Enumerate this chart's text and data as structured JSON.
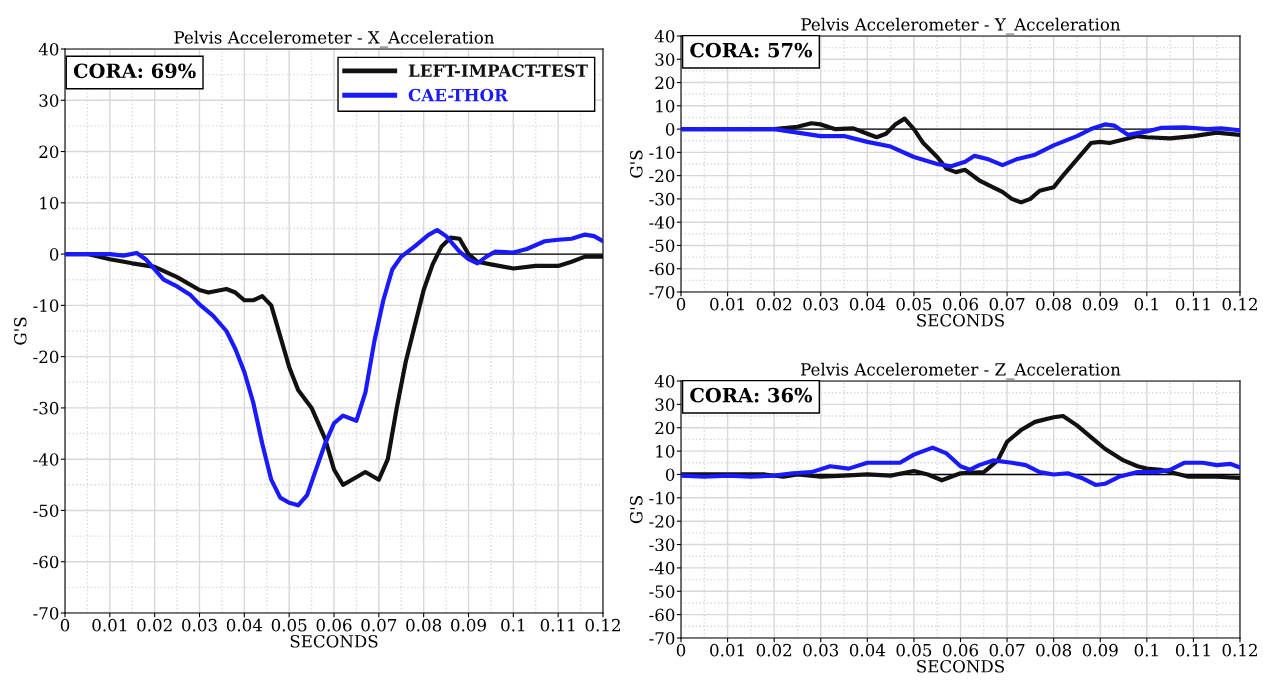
{
  "chart_data": [
    {
      "type": "line",
      "title": "Pelvis Accelerometer - X_Acceleration",
      "xlabel": "SECONDS",
      "ylabel": "G'S",
      "annotations": [
        "CORA: 69%"
      ],
      "xlim": [
        0,
        0.12
      ],
      "ylim": [
        -70,
        40
      ],
      "xticks": [
        0,
        0.01,
        0.02,
        0.03,
        0.04,
        0.05,
        0.06,
        0.07,
        0.08,
        0.09,
        0.1,
        0.11,
        0.12
      ],
      "yticks": [
        -70,
        -60,
        -50,
        -40,
        -30,
        -20,
        -10,
        0,
        10,
        20,
        30,
        40
      ],
      "grid": true,
      "legend": "top right",
      "ref_lines": [
        {
          "axis": "y",
          "value": 0,
          "color": "#000000"
        }
      ],
      "series": [
        {
          "name": "LEFT-IMPACT-TEST",
          "color": "#111111",
          "x": [
            0,
            0.005,
            0.01,
            0.015,
            0.02,
            0.025,
            0.03,
            0.032,
            0.036,
            0.038,
            0.04,
            0.042,
            0.044,
            0.046,
            0.048,
            0.05,
            0.052,
            0.055,
            0.058,
            0.06,
            0.062,
            0.064,
            0.067,
            0.07,
            0.072,
            0.074,
            0.076,
            0.078,
            0.08,
            0.082,
            0.084,
            0.086,
            0.088,
            0.09,
            0.092,
            0.095,
            0.1,
            0.105,
            0.11,
            0.113,
            0.116,
            0.12
          ],
          "values": [
            0,
            0,
            -1,
            -1.8,
            -2.5,
            -4.5,
            -7,
            -7.5,
            -6.8,
            -7.5,
            -9,
            -9,
            -8.2,
            -10,
            -16,
            -22,
            -26.5,
            -30,
            -36,
            -42,
            -45,
            -44,
            -42.5,
            -44,
            -40,
            -30,
            -21,
            -14,
            -7,
            -2,
            1.5,
            3.2,
            3,
            0,
            -1.5,
            -2,
            -2.8,
            -2.3,
            -2.3,
            -1.5,
            -0.5,
            -0.5
          ]
        },
        {
          "name": "CAE-THOR",
          "color": "#1a1aff",
          "x": [
            0,
            0.01,
            0.013,
            0.016,
            0.018,
            0.02,
            0.022,
            0.025,
            0.028,
            0.03,
            0.033,
            0.036,
            0.038,
            0.04,
            0.042,
            0.044,
            0.046,
            0.048,
            0.05,
            0.052,
            0.054,
            0.056,
            0.058,
            0.06,
            0.062,
            0.065,
            0.067,
            0.069,
            0.071,
            0.073,
            0.075,
            0.078,
            0.081,
            0.083,
            0.085,
            0.088,
            0.09,
            0.092,
            0.094,
            0.096,
            0.1,
            0.103,
            0.107,
            0.11,
            0.113,
            0.116,
            0.118,
            0.12
          ],
          "values": [
            0,
            0,
            -0.3,
            0.2,
            -1,
            -3,
            -5,
            -6.3,
            -8,
            -9.8,
            -12,
            -15,
            -18.5,
            -23,
            -29,
            -37,
            -44,
            -47.5,
            -48.5,
            -49,
            -47,
            -42,
            -37,
            -33,
            -31.5,
            -32.5,
            -27,
            -17,
            -9,
            -3,
            -0.5,
            1.5,
            3.7,
            4.7,
            3.5,
            0.5,
            -1,
            -1.8,
            -0.5,
            0.5,
            0.3,
            1,
            2.5,
            2.8,
            3,
            3.8,
            3.5,
            2.5
          ]
        }
      ]
    },
    {
      "type": "line",
      "title": "Pelvis Accelerometer - Y_Acceleration",
      "xlabel": "SECONDS",
      "ylabel": "G'S",
      "annotations": [
        "CORA: 57%"
      ],
      "xlim": [
        0,
        0.12
      ],
      "ylim": [
        -70,
        40
      ],
      "xticks": [
        0,
        0.01,
        0.02,
        0.03,
        0.04,
        0.05,
        0.06,
        0.07,
        0.08,
        0.09,
        0.1,
        0.11,
        0.12
      ],
      "yticks": [
        -70,
        -60,
        -50,
        -40,
        -30,
        -20,
        -10,
        0,
        10,
        20,
        30,
        40
      ],
      "grid": true,
      "ref_lines": [
        {
          "axis": "y",
          "value": 0,
          "color": "#000000"
        }
      ],
      "series": [
        {
          "color": "#111111",
          "x": [
            0,
            0.02,
            0.025,
            0.028,
            0.03,
            0.033,
            0.037,
            0.04,
            0.042,
            0.044,
            0.046,
            0.048,
            0.05,
            0.052,
            0.055,
            0.057,
            0.059,
            0.061,
            0.064,
            0.067,
            0.069,
            0.071,
            0.073,
            0.075,
            0.077,
            0.08,
            0.082,
            0.085,
            0.088,
            0.09,
            0.092,
            0.095,
            0.098,
            0.1,
            0.105,
            0.11,
            0.115,
            0.12
          ],
          "values": [
            0,
            0,
            1,
            2.5,
            2,
            0,
            0.3,
            -2,
            -3.5,
            -2,
            2,
            4.5,
            0,
            -6,
            -12,
            -17,
            -18.5,
            -17.5,
            -22,
            -25,
            -27,
            -30,
            -31.5,
            -30,
            -26.5,
            -25,
            -20,
            -13,
            -6,
            -5.5,
            -6,
            -4.5,
            -3,
            -3.5,
            -4,
            -3,
            -1.5,
            -2.5
          ]
        },
        {
          "color": "#1a1aff",
          "x": [
            0,
            0.02,
            0.025,
            0.03,
            0.035,
            0.04,
            0.045,
            0.05,
            0.055,
            0.058,
            0.061,
            0.063,
            0.066,
            0.069,
            0.072,
            0.076,
            0.08,
            0.085,
            0.088,
            0.091,
            0.093,
            0.096,
            0.1,
            0.103,
            0.108,
            0.113,
            0.116,
            0.12
          ],
          "values": [
            0,
            0,
            -1.5,
            -3,
            -3,
            -5.5,
            -7.5,
            -12,
            -15,
            -16,
            -14,
            -11.5,
            -13,
            -15.5,
            -13,
            -11,
            -7,
            -3,
            0,
            2,
            1.5,
            -2.5,
            -1,
            0.5,
            0.8,
            0,
            0.3,
            -0.5
          ]
        }
      ]
    },
    {
      "type": "line",
      "title": "Pelvis Accelerometer - Z_Acceleration",
      "xlabel": "SECONDS",
      "ylabel": "G'S",
      "annotations": [
        "CORA: 36%"
      ],
      "xlim": [
        0,
        0.12
      ],
      "ylim": [
        -70,
        40
      ],
      "xticks": [
        0,
        0.01,
        0.02,
        0.03,
        0.04,
        0.05,
        0.06,
        0.07,
        0.08,
        0.09,
        0.1,
        0.11,
        0.12
      ],
      "yticks": [
        -70,
        -60,
        -50,
        -40,
        -30,
        -20,
        -10,
        0,
        10,
        20,
        30,
        40
      ],
      "grid": true,
      "ref_lines": [
        {
          "axis": "y",
          "value": 0,
          "color": "#000000"
        }
      ],
      "series": [
        {
          "color": "#111111",
          "x": [
            0,
            0.018,
            0.022,
            0.025,
            0.03,
            0.035,
            0.04,
            0.045,
            0.05,
            0.053,
            0.056,
            0.058,
            0.06,
            0.065,
            0.068,
            0.07,
            0.073,
            0.076,
            0.08,
            0.082,
            0.085,
            0.088,
            0.091,
            0.095,
            0.098,
            0.1,
            0.103,
            0.106,
            0.109,
            0.115,
            0.12
          ],
          "values": [
            0,
            0,
            -1,
            0,
            -1,
            -0.5,
            0,
            -0.5,
            1.5,
            0,
            -2.5,
            -1,
            0.5,
            1,
            6,
            14,
            19,
            22.5,
            24.5,
            25,
            21,
            16,
            11,
            6,
            3.5,
            2.5,
            2,
            0.5,
            -1,
            -1,
            -1.5
          ]
        },
        {
          "color": "#1a1aff",
          "x": [
            0,
            0.005,
            0.01,
            0.015,
            0.02,
            0.024,
            0.028,
            0.032,
            0.036,
            0.04,
            0.044,
            0.047,
            0.05,
            0.054,
            0.057,
            0.06,
            0.062,
            0.064,
            0.067,
            0.071,
            0.074,
            0.077,
            0.08,
            0.083,
            0.086,
            0.089,
            0.091,
            0.094,
            0.098,
            0.102,
            0.105,
            0.108,
            0.112,
            0.115,
            0.118,
            0.12
          ],
          "values": [
            -0.5,
            -1,
            -0.5,
            -1,
            -0.5,
            0.5,
            1,
            3.5,
            2.5,
            5,
            5,
            5,
            8.5,
            11.5,
            9,
            3.5,
            2,
            4,
            6,
            5,
            4,
            1,
            0,
            0.5,
            -1.5,
            -4.5,
            -4,
            -1,
            1,
            1,
            2,
            5,
            5,
            4,
            4.5,
            3
          ]
        }
      ]
    }
  ]
}
